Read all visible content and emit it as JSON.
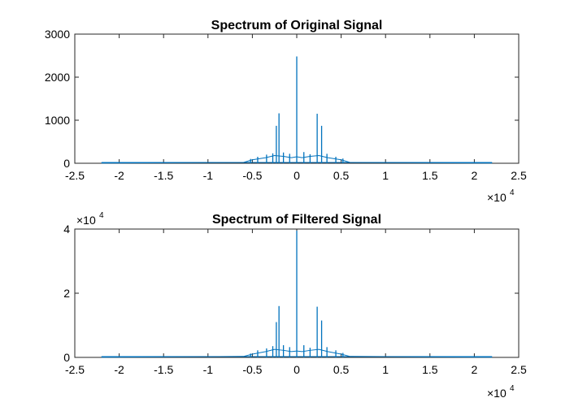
{
  "chart_data": [
    {
      "type": "line",
      "title": "Spectrum of Original Signal",
      "xlabel": "",
      "ylabel": "",
      "xlim": [
        -25000,
        25000
      ],
      "ylim": [
        0,
        3000
      ],
      "x_tick_labels": [
        "-2.5",
        "-2",
        "-1.5",
        "-1",
        "-0.5",
        "0",
        "0.5",
        "1",
        "1.5",
        "2",
        "2.5"
      ],
      "y_tick_labels": [
        "0",
        "1000",
        "2000",
        "3000"
      ],
      "x_exponent": "4",
      "y_exponent": "",
      "grid": false,
      "line_color": "#0072BD",
      "peaks": [
        {
          "x": 0,
          "y": 2480
        },
        {
          "x": -2300,
          "y": 870
        },
        {
          "x": 2300,
          "y": 1150
        },
        {
          "x": -2000,
          "y": 1160
        },
        {
          "x": 2800,
          "y": 870
        },
        {
          "x": -2700,
          "y": 230
        },
        {
          "x": -1500,
          "y": 250
        },
        {
          "x": -800,
          "y": 220
        },
        {
          "x": 800,
          "y": 260
        },
        {
          "x": 1500,
          "y": 210
        },
        {
          "x": 3400,
          "y": 220
        },
        {
          "x": -3400,
          "y": 200
        },
        {
          "x": -4400,
          "y": 150
        },
        {
          "x": 4400,
          "y": 150
        },
        {
          "x": -5200,
          "y": 100
        },
        {
          "x": 5200,
          "y": 110
        }
      ],
      "envelope_x": [
        -22000,
        -6000,
        -5000,
        -3500,
        -2500,
        -1500,
        -600,
        0,
        600,
        1500,
        2500,
        3500,
        5000,
        6000,
        22000
      ],
      "envelope_y": [
        5,
        20,
        80,
        130,
        180,
        160,
        130,
        150,
        130,
        160,
        180,
        130,
        80,
        20,
        5
      ]
    },
    {
      "type": "line",
      "title": "Spectrum of Filtered Signal",
      "xlabel": "",
      "ylabel": "",
      "xlim": [
        -25000,
        25000
      ],
      "ylim": [
        0,
        40000
      ],
      "x_tick_labels": [
        "-2.5",
        "-2",
        "-1.5",
        "-1",
        "-0.5",
        "0",
        "0.5",
        "1",
        "1.5",
        "2",
        "2.5"
      ],
      "y_tick_labels": [
        "0",
        "2",
        "4"
      ],
      "x_exponent": "4",
      "y_exponent": "4",
      "grid": false,
      "line_color": "#0072BD",
      "peaks": [
        {
          "x": 0,
          "y": 39500
        },
        {
          "x": -2300,
          "y": 11000
        },
        {
          "x": 2300,
          "y": 15800
        },
        {
          "x": -2000,
          "y": 16000
        },
        {
          "x": 2800,
          "y": 11500
        },
        {
          "x": -2700,
          "y": 3500
        },
        {
          "x": -1500,
          "y": 3800
        },
        {
          "x": -800,
          "y": 3200
        },
        {
          "x": 800,
          "y": 3800
        },
        {
          "x": 1500,
          "y": 3000
        },
        {
          "x": 3400,
          "y": 3200
        },
        {
          "x": -3400,
          "y": 2800
        },
        {
          "x": -4400,
          "y": 2200
        },
        {
          "x": 4400,
          "y": 2200
        },
        {
          "x": -5200,
          "y": 1200
        },
        {
          "x": 5200,
          "y": 1400
        }
      ],
      "envelope_x": [
        -22000,
        -6000,
        -5000,
        -3500,
        -2500,
        -1500,
        -600,
        0,
        600,
        1500,
        2500,
        3500,
        5000,
        6000,
        22000
      ],
      "envelope_y": [
        50,
        300,
        1000,
        1800,
        2500,
        2200,
        1800,
        2000,
        1800,
        2200,
        2500,
        1800,
        1000,
        300,
        50
      ]
    }
  ]
}
